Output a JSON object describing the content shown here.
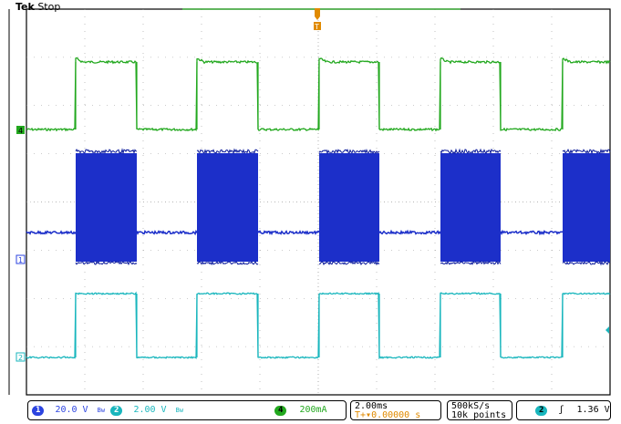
{
  "header": {
    "brand": "Tek",
    "state": "Stop"
  },
  "trigger_marker": "T",
  "channels": [
    {
      "id": "1",
      "color": "#1c2fc9",
      "label_color": "#2c44e0",
      "scale": "20.0 V"
    },
    {
      "id": "2",
      "color": "#19b6bd",
      "label_color": "#19b6bd",
      "scale": "2.00 V"
    },
    {
      "id": "4",
      "color": "#22a81e",
      "label_color": "#22a81e",
      "scale": "200mA"
    }
  ],
  "bandwidth_limit_symbol": "Bw",
  "timebase": {
    "per_div": "2.00ms",
    "trigger_offset": "0.00000 s",
    "offset_prefix": "T+▾"
  },
  "acquisition": {
    "sample_rate": "500kS/s",
    "record_length": "10k points"
  },
  "trigger": {
    "source": "2",
    "slope_symbol": "ʃ",
    "level": "1.36 V"
  },
  "colors": {
    "grid": "#9a9a9a",
    "bg": "#ffffff",
    "trigger_orange": "#e08a00"
  }
}
